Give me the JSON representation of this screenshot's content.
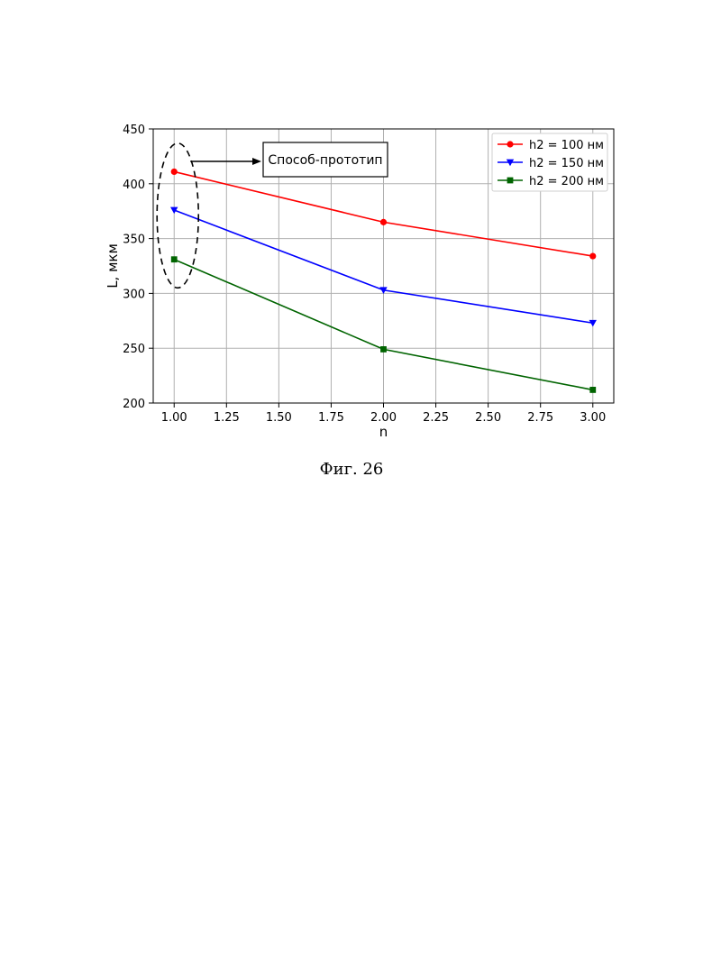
{
  "chart_data": {
    "type": "line",
    "xlabel": "n",
    "ylabel": "L, мкм",
    "xlim": [
      0.9,
      3.1
    ],
    "ylim": [
      200,
      450
    ],
    "xticks": [
      1.0,
      1.25,
      1.5,
      1.75,
      2.0,
      2.25,
      2.5,
      2.75,
      3.0
    ],
    "xtick_labels": [
      "1.00",
      "1.25",
      "1.50",
      "1.75",
      "2.00",
      "2.25",
      "2.50",
      "2.75",
      "3.00"
    ],
    "yticks": [
      200,
      250,
      300,
      350,
      400,
      450
    ],
    "ytick_labels": [
      "200",
      "250",
      "300",
      "350",
      "400",
      "450"
    ],
    "grid": true,
    "legend_position": "top-right",
    "x": [
      1.0,
      2.0,
      3.0
    ],
    "series": [
      {
        "name": "h2 = 100 нм",
        "values": [
          411,
          365,
          334
        ],
        "color": "#ff0000",
        "marker": "circle"
      },
      {
        "name": "h2 = 150 нм",
        "values": [
          376,
          303,
          273
        ],
        "color": "#0000ff",
        "marker": "triangle-down"
      },
      {
        "name": "h2 = 200 нм",
        "values": [
          331,
          249,
          212
        ],
        "color": "#006400",
        "marker": "square"
      }
    ],
    "annotations": [
      {
        "text": "Способ-прототип",
        "target_x": 1.0,
        "target_y_range": [
          305,
          437
        ]
      }
    ]
  },
  "caption": "Фиг. 26"
}
